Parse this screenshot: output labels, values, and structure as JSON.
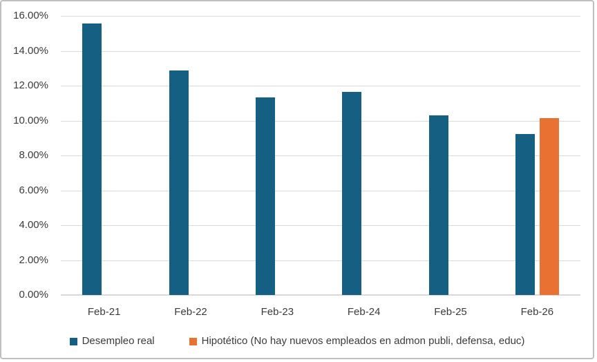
{
  "chart_data": {
    "type": "bar",
    "title": "",
    "xlabel": "",
    "ylabel": "",
    "categories": [
      "Feb-21",
      "Feb-22",
      "Feb-23",
      "Feb-24",
      "Feb-25",
      "Feb-26"
    ],
    "series": [
      {
        "name": "Desempleo real",
        "color": "#156082",
        "values": [
          15.57,
          12.88,
          11.33,
          11.66,
          10.31,
          9.22
        ]
      },
      {
        "name": "Hipotético (No hay nuevos empleados en admon publi, defensa, educ)",
        "color": "#E97132",
        "values": [
          null,
          null,
          null,
          null,
          null,
          10.14
        ]
      }
    ],
    "ylim": [
      0,
      16
    ],
    "ytick_step": 2,
    "ytick_labels": [
      "0.00%",
      "2.00%",
      "4.00%",
      "6.00%",
      "8.00%",
      "10.00%",
      "12.00%",
      "14.00%",
      "16.00%"
    ],
    "grid": true,
    "legend_position": "bottom",
    "colors": {
      "gridline": "#d9d9d9",
      "axis_line": "#d9d9d9",
      "text": "#3a3a3a",
      "background": "#ffffff",
      "border": "#bfbfbf"
    }
  }
}
